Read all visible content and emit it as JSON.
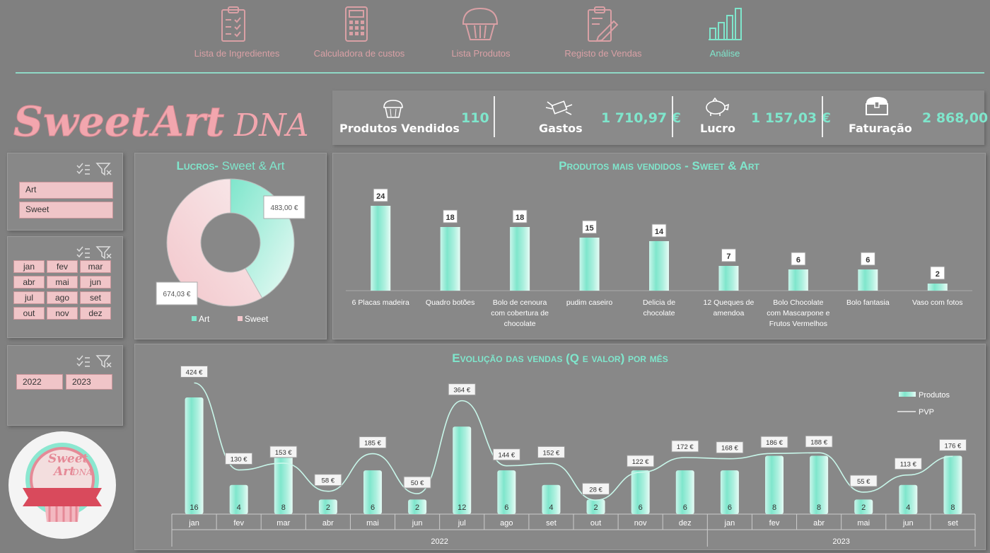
{
  "nav": {
    "items": [
      {
        "label": "Lista de Ingredientes",
        "icon": "clipboard-checklist-icon"
      },
      {
        "label": "Calculadora de custos",
        "icon": "calculator-icon"
      },
      {
        "label": "Lista Produtos",
        "icon": "cupcake-icon"
      },
      {
        "label": "Registo de Vendas",
        "icon": "clipboard-pencil-icon"
      },
      {
        "label": "Análise",
        "icon": "bar-chart-icon",
        "active": true
      }
    ]
  },
  "logo": {
    "text_sweet": "Sweet",
    "text_art": "Art",
    "text_dna": "DNA"
  },
  "kpis": [
    {
      "label": "Produtos Vendidos",
      "value": "110",
      "icon": "cupcake-icon"
    },
    {
      "label": "Gastos",
      "value": "1 710,97 €",
      "icon": "money-wings-icon"
    },
    {
      "label": "Lucro",
      "value": "1 157,03 €",
      "icon": "piggy-bank-icon"
    },
    {
      "label": "Faturação",
      "value": "2 868,00",
      "icon": "treasure-chest-icon"
    }
  ],
  "slicers": {
    "category": [
      "Art",
      "Sweet"
    ],
    "months": [
      "jan",
      "fev",
      "mar",
      "abr",
      "mai",
      "jun",
      "jul",
      "ago",
      "set",
      "out",
      "nov",
      "dez"
    ],
    "years": [
      "2022",
      "2023"
    ]
  },
  "colors": {
    "teal": "#7fe6cc",
    "pink": "#f0c5c8",
    "bg": "#808080"
  },
  "charts": {
    "donut_title_a": "Lucros-",
    "donut_title_b": " Sweet & Art",
    "bar_title": "Produtos mais vendidos - Sweet & Art",
    "line_title": "Evolução das vendas (Q e valor) por mês"
  },
  "chart_data": [
    {
      "type": "pie",
      "subtype": "donut",
      "title": "Lucros- Sweet & Art",
      "categories": [
        "Art",
        "Sweet"
      ],
      "values": [
        483.0,
        674.03
      ],
      "labels": [
        "483,00 €",
        "674,03 €"
      ],
      "legend": "bottom"
    },
    {
      "type": "bar",
      "title": "Produtos mais vendidos - Sweet & Art",
      "categories": [
        "6 Placas madeira",
        "Quadro botões",
        "Bolo de cenoura com cobertura de chocolate",
        "pudim caseiro",
        "Delicia de chocolate",
        "12 Queques de amendoa",
        "Bolo Chocolate com Mascarpone e Frutos Vermelhos",
        "Bolo fantasia",
        "Vaso com fotos"
      ],
      "values": [
        24,
        18,
        18,
        15,
        14,
        7,
        6,
        6,
        2
      ],
      "ylim": [
        0,
        26
      ]
    },
    {
      "type": "bar",
      "combo": "bar+line",
      "title": "Evolução das vendas (Q e valor) por mês",
      "categories": [
        "jan",
        "fev",
        "mar",
        "abr",
        "mai",
        "jun",
        "jul",
        "ago",
        "set",
        "out",
        "nov",
        "dez",
        "jan",
        "fev",
        "abr",
        "mai",
        "jun",
        "set"
      ],
      "groups": [
        {
          "label": "2022",
          "count": 12
        },
        {
          "label": "2023",
          "count": 6
        }
      ],
      "series": [
        {
          "name": "Produtos",
          "type": "bar",
          "values": [
            16,
            4,
            8,
            2,
            6,
            2,
            12,
            6,
            4,
            2,
            6,
            6,
            6,
            8,
            8,
            2,
            4,
            8
          ]
        },
        {
          "name": "PVP",
          "type": "line",
          "values": [
            424,
            130,
            153,
            58,
            185,
            50,
            364,
            144,
            152,
            28,
            122,
            172,
            168,
            186,
            188,
            55,
            113,
            176
          ],
          "labels": [
            "424 €",
            "130 €",
            "153 €",
            "58 €",
            "185 €",
            "50 €",
            "364 €",
            "144 €",
            "152 €",
            "28 €",
            "122 €",
            "172 €",
            "168 €",
            "186 €",
            "188 €",
            "55 €",
            "113 €",
            "176 €"
          ]
        }
      ],
      "legend": "top-right"
    }
  ]
}
